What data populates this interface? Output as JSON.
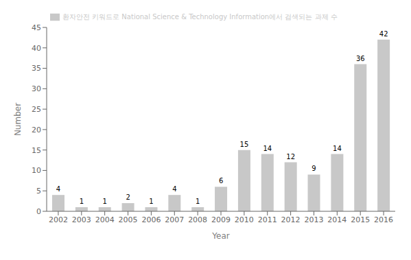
{
  "chart_data": {
    "type": "bar",
    "xlabel": "Year",
    "ylabel": "Number",
    "categories": [
      "2002",
      "2003",
      "2004",
      "2005",
      "2006",
      "2007",
      "2008",
      "2009",
      "2010",
      "2011",
      "2012",
      "2013",
      "2014",
      "2015",
      "2016"
    ],
    "series": [
      {
        "name": "환자안전 키워드로 National Science & Technology Information에서 검색되는 과제 수",
        "color": "#c8c8c8",
        "values": [
          4,
          1,
          1,
          2,
          1,
          4,
          1,
          6,
          15,
          14,
          12,
          9,
          14,
          36,
          42
        ]
      }
    ],
    "ylim": [
      0,
      45
    ],
    "yticks": [
      0,
      5,
      10,
      15,
      20,
      25,
      30,
      35,
      40,
      45
    ],
    "grid": false,
    "legend": "upper left",
    "data_labels": true
  }
}
